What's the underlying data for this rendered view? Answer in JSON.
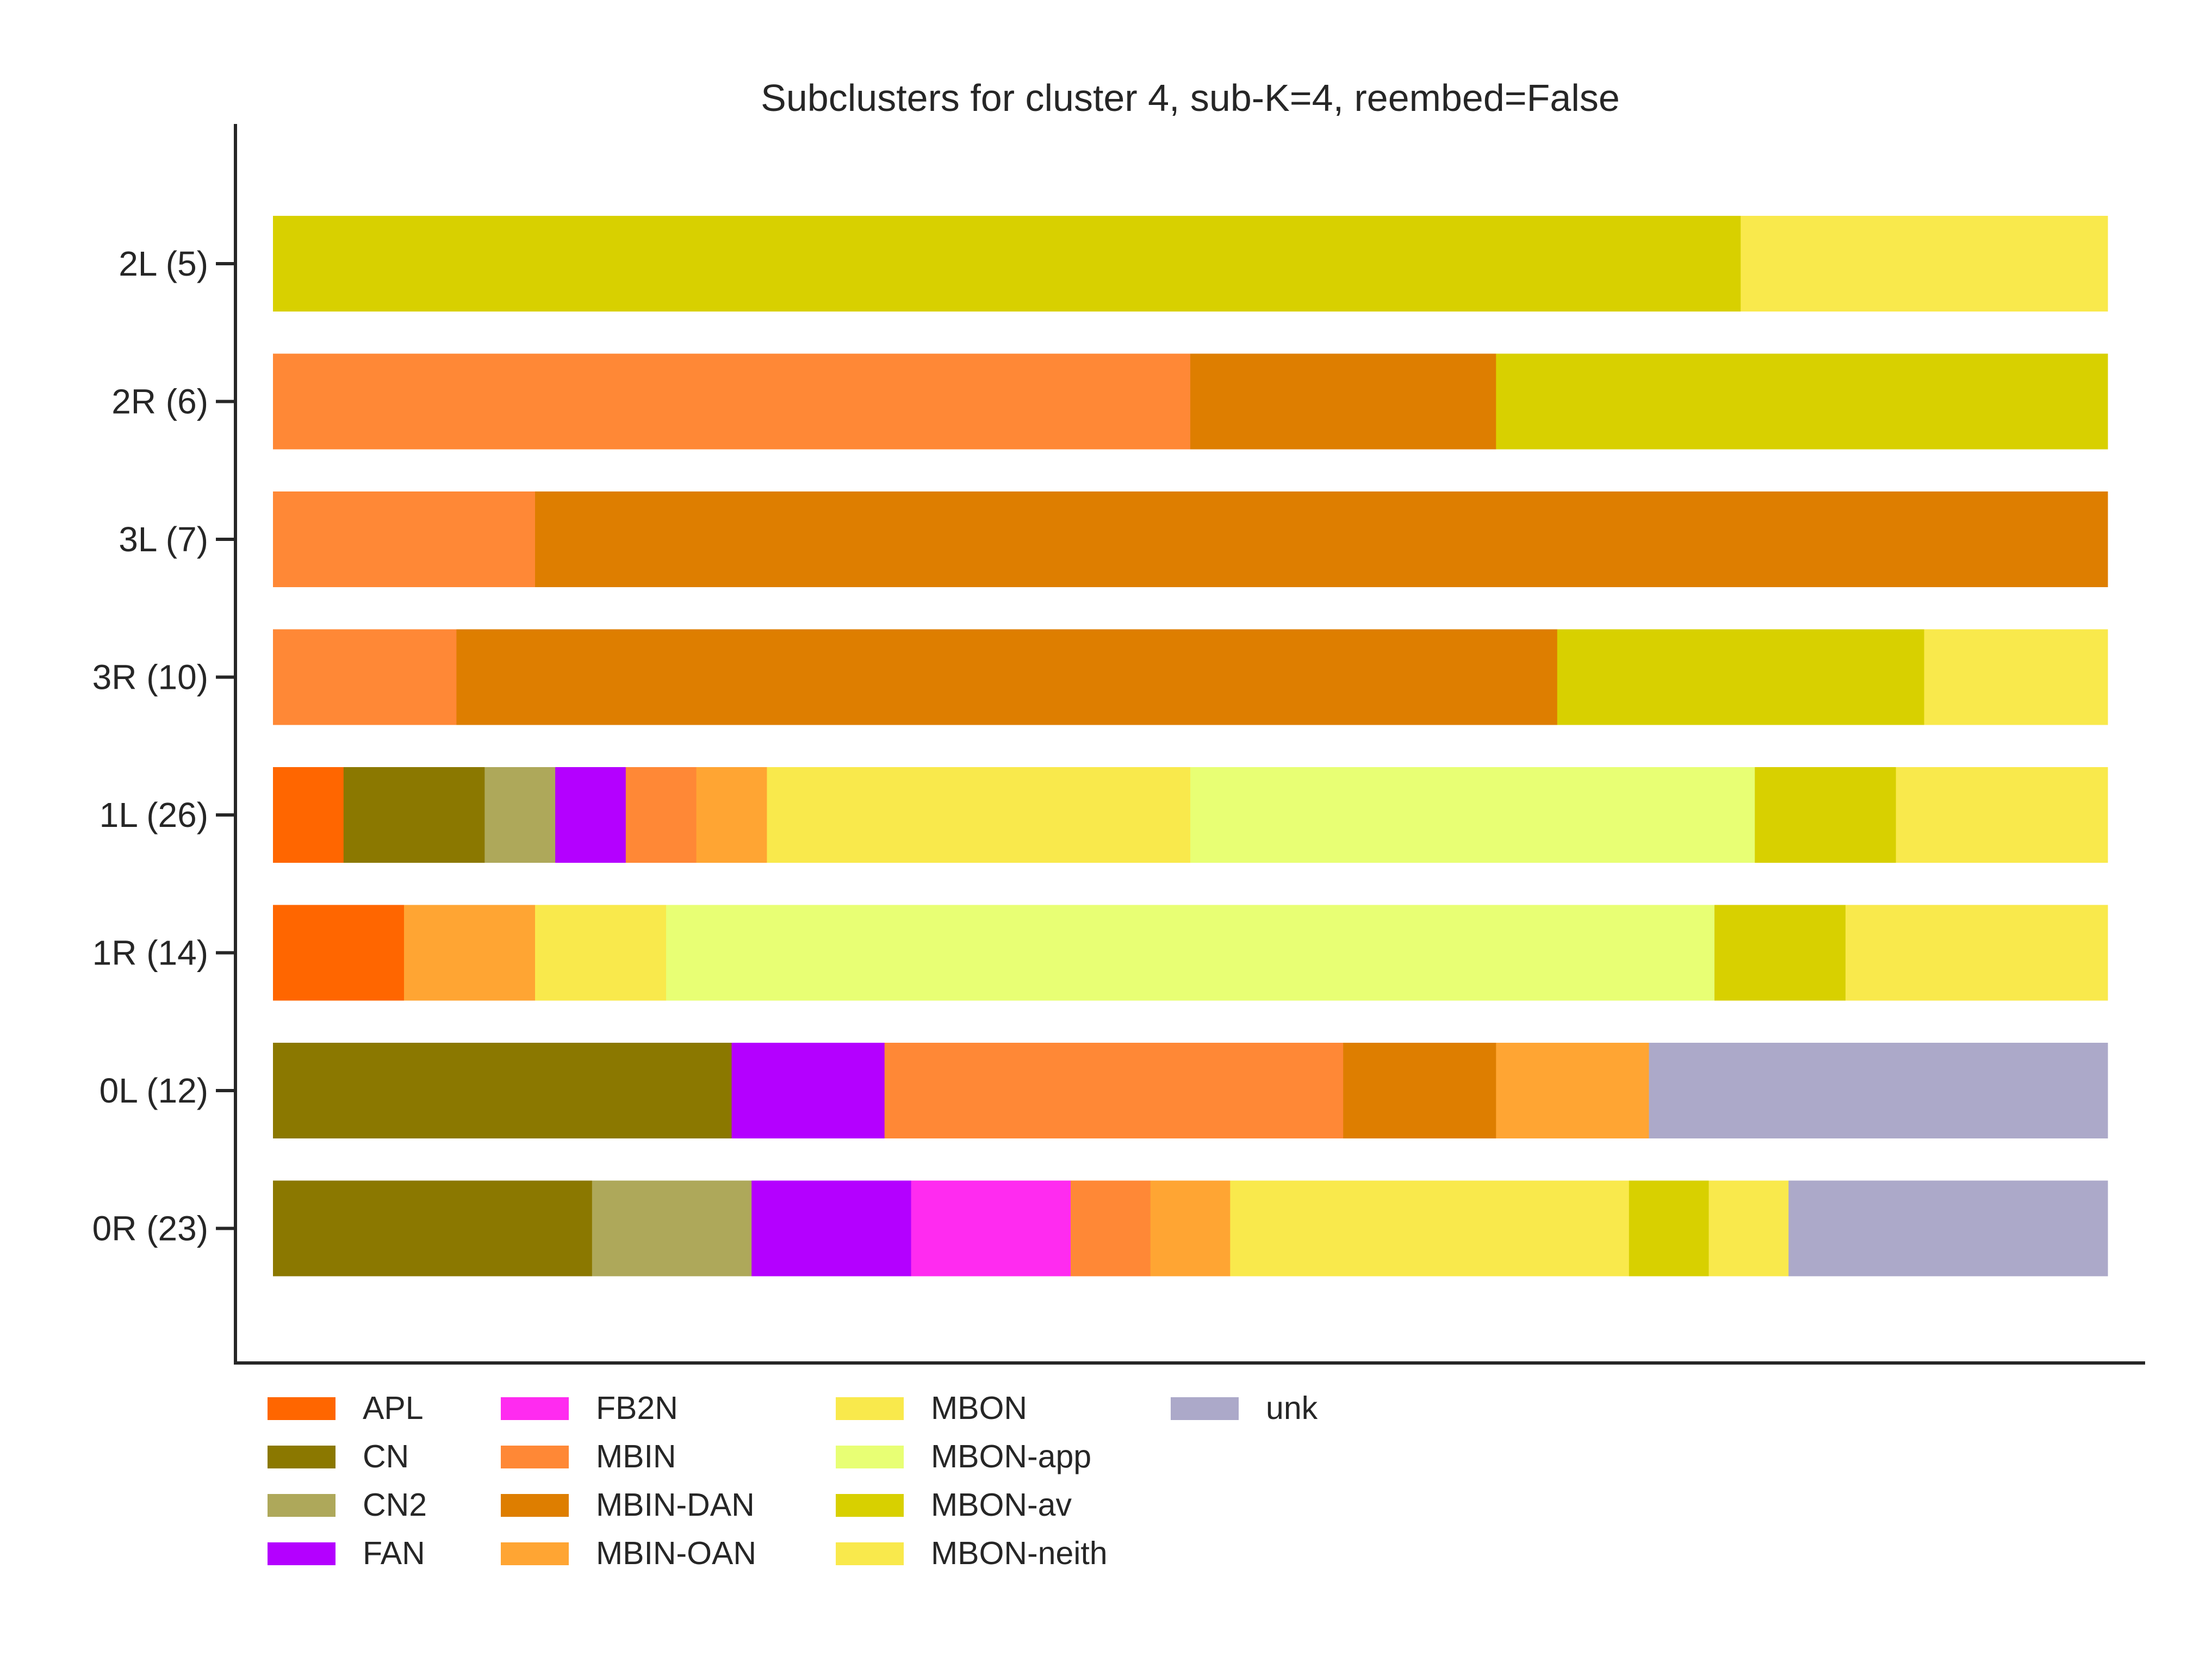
{
  "chart_data": {
    "type": "bar",
    "orientation": "horizontal",
    "stacked": true,
    "normalized": true,
    "title": "Subclusters for cluster 4, sub-K=4, reembed=False",
    "xlabel": "",
    "ylabel": "",
    "xlim": [
      0,
      1
    ],
    "grid": false,
    "legend_position": "bottom-left",
    "categories": [
      "2L (5)",
      "2R (6)",
      "3L (7)",
      "3R (10)",
      "1L (26)",
      "1R (14)",
      "0L (12)",
      "0R (23)"
    ],
    "series": [
      {
        "name": "APL",
        "color": "#ff6600",
        "values": [
          0,
          0,
          0,
          0,
          1,
          1,
          0,
          0
        ]
      },
      {
        "name": "CN",
        "color": "#8b7800",
        "values": [
          0,
          0,
          0,
          0,
          2,
          0,
          3,
          4
        ]
      },
      {
        "name": "CN2",
        "color": "#aea85a",
        "values": [
          0,
          0,
          0,
          0,
          1,
          0,
          0,
          2
        ]
      },
      {
        "name": "FAN",
        "color": "#b400ff",
        "values": [
          0,
          0,
          0,
          0,
          1,
          0,
          1,
          2
        ]
      },
      {
        "name": "FB2N",
        "color": "#ff2bf0",
        "values": [
          0,
          0,
          0,
          0,
          0,
          0,
          0,
          2
        ]
      },
      {
        "name": "MBIN",
        "color": "#ff8836",
        "values": [
          0,
          3,
          1,
          1,
          1,
          0,
          3,
          1
        ]
      },
      {
        "name": "MBIN-DAN",
        "color": "#de7e00",
        "values": [
          0,
          1,
          6,
          6,
          0,
          0,
          1,
          0
        ]
      },
      {
        "name": "MBIN-OAN",
        "color": "#ffa533",
        "values": [
          0,
          0,
          0,
          0,
          1,
          1,
          1,
          1
        ]
      },
      {
        "name": "MBON",
        "color": "#f9e94c",
        "values": [
          0,
          0,
          0,
          0,
          6,
          1,
          0,
          5
        ]
      },
      {
        "name": "MBON-app",
        "color": "#e8ff74",
        "values": [
          0,
          0,
          0,
          0,
          8,
          8,
          0,
          0
        ]
      },
      {
        "name": "MBON-av",
        "color": "#d8d000",
        "values": [
          4,
          2,
          0,
          2,
          2,
          1,
          0,
          1
        ]
      },
      {
        "name": "MBON-neith",
        "color": "#f9e94c",
        "values": [
          1,
          0,
          0,
          1,
          3,
          2,
          0,
          1
        ]
      },
      {
        "name": "unk",
        "color": "#aca9c9",
        "values": [
          0,
          0,
          0,
          0,
          0,
          0,
          3,
          4
        ]
      }
    ],
    "legend": [
      {
        "label": "APL",
        "color": "#ff6600"
      },
      {
        "label": "CN",
        "color": "#8b7800"
      },
      {
        "label": "CN2",
        "color": "#aea85a"
      },
      {
        "label": "FAN",
        "color": "#b400ff"
      },
      {
        "label": "FB2N",
        "color": "#ff2bf0"
      },
      {
        "label": "MBIN",
        "color": "#ff8836"
      },
      {
        "label": "MBIN-DAN",
        "color": "#de7e00"
      },
      {
        "label": "MBIN-OAN",
        "color": "#ffa533"
      },
      {
        "label": "MBON",
        "color": "#f9e94c"
      },
      {
        "label": "MBON-app",
        "color": "#e8ff74"
      },
      {
        "label": "MBON-av",
        "color": "#d8d000"
      },
      {
        "label": "MBON-neith",
        "color": "#f9e94c"
      },
      {
        "label": "unk",
        "color": "#aca9c9"
      }
    ]
  }
}
